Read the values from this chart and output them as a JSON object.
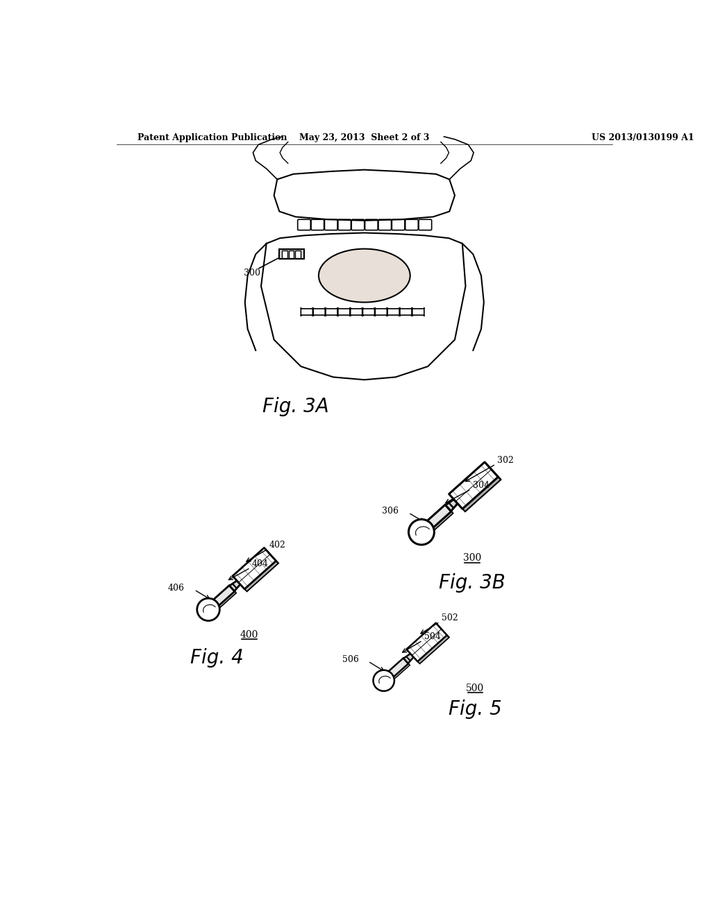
{
  "background_color": "#ffffff",
  "header_left": "Patent Application Publication",
  "header_center": "May 23, 2013  Sheet 2 of 3",
  "header_right": "US 2013/0130199 A1",
  "fig3a_label": "Fig. 3A",
  "fig3b_label": "Fig. 3B",
  "fig4_label": "Fig. 4",
  "fig5_label": "Fig. 5",
  "ref_300_arrow": "300",
  "ref_302": "302",
  "ref_304": "304",
  "ref_306": "306",
  "ref_300b": "300",
  "ref_402": "402",
  "ref_404": "404",
  "ref_406": "406",
  "ref_400": "400",
  "ref_502": "502",
  "ref_504": "504",
  "ref_506": "506",
  "ref_500": "500"
}
